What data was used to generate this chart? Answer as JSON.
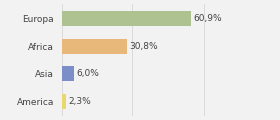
{
  "categories": [
    "Europa",
    "Africa",
    "Asia",
    "America"
  ],
  "values": [
    60.9,
    30.8,
    6.0,
    2.3
  ],
  "labels": [
    "60,9%",
    "30,8%",
    "6,0%",
    "2,3%"
  ],
  "bar_colors": [
    "#adc191",
    "#e8b87a",
    "#7b8ec8",
    "#e8d870"
  ],
  "background_color": "#f2f2f2",
  "xlim": [
    0,
    100
  ],
  "bar_height": 0.55,
  "fontsize_labels": 6.5,
  "fontsize_values": 6.5,
  "grid_lines": [
    0,
    33,
    67,
    100
  ],
  "grid_color": "#d0d0d0"
}
